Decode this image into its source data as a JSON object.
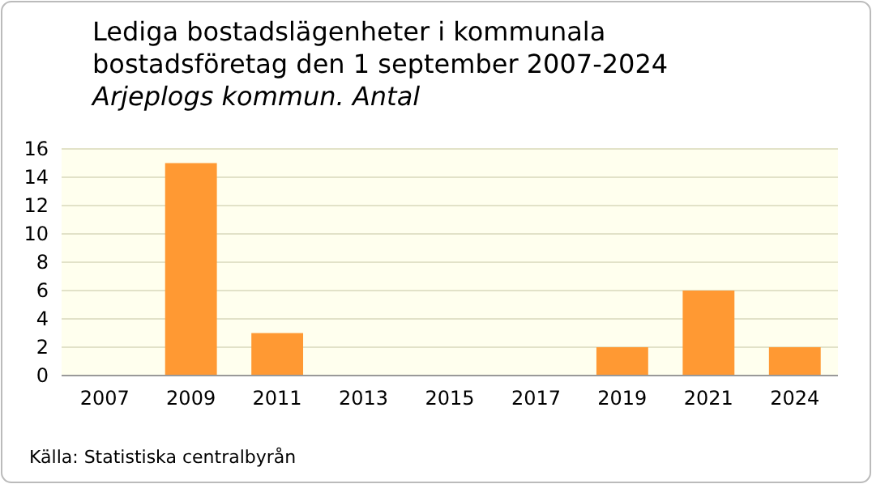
{
  "chart_data": {
    "type": "bar",
    "title": "Lediga bostadslägenheter i kommunala bostadsföretag den 1 september 2007-2024",
    "subtitle": "Arjeplogs kommun. Antal",
    "categories": [
      "2007",
      "2009",
      "2011",
      "2013",
      "2015",
      "2017",
      "2019",
      "2021",
      "2024"
    ],
    "values": [
      0,
      15,
      3,
      0,
      0,
      0,
      2,
      6,
      2
    ],
    "color": "#ff9933",
    "ylim": [
      0,
      16
    ],
    "yticks": [
      0,
      2,
      4,
      6,
      8,
      10,
      12,
      14,
      16
    ],
    "grid": "y",
    "annotations": [
      "Källa: Statistiska centralbyrån"
    ]
  }
}
